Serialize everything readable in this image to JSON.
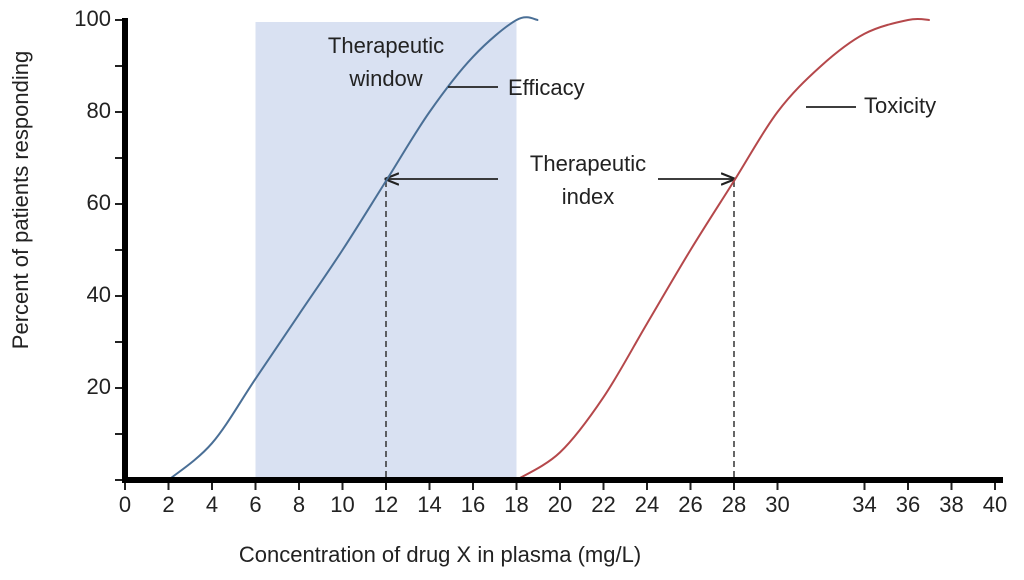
{
  "chart_data": {
    "type": "line",
    "xlabel": "Concentration of drug X in plasma (mg/L)",
    "ylabel": "Percent of patients responding",
    "xlim": [
      0,
      40
    ],
    "ylim": [
      0,
      100
    ],
    "xticks": [
      0,
      2,
      4,
      6,
      8,
      10,
      12,
      14,
      16,
      18,
      20,
      22,
      24,
      26,
      28,
      30,
      34,
      36,
      38,
      40
    ],
    "yticks": [
      20,
      40,
      60,
      80,
      100
    ],
    "yminor": [
      0,
      10,
      30,
      50,
      70,
      90
    ],
    "window": [
      6,
      18
    ],
    "window_color": "#d9e1f2",
    "series": [
      {
        "name": "Efficacy",
        "color": "#4a6f96",
        "x": [
          2,
          4,
          6,
          8,
          10,
          12,
          14,
          16,
          18,
          19
        ],
        "values": [
          0,
          8,
          22,
          36,
          50,
          65,
          80,
          92,
          100,
          100
        ]
      },
      {
        "name": "Toxicity",
        "color": "#b5484b",
        "x": [
          18,
          20,
          22,
          24,
          26,
          28,
          30,
          32,
          34,
          36,
          37
        ],
        "values": [
          0,
          6,
          18,
          34,
          50,
          65,
          80,
          90,
          97,
          100,
          100
        ]
      }
    ],
    "window_label": [
      "Therapeutic",
      "window"
    ],
    "index_label": [
      "Therapeutic",
      "index"
    ],
    "index_x": [
      12,
      28
    ],
    "index_y": 65
  }
}
